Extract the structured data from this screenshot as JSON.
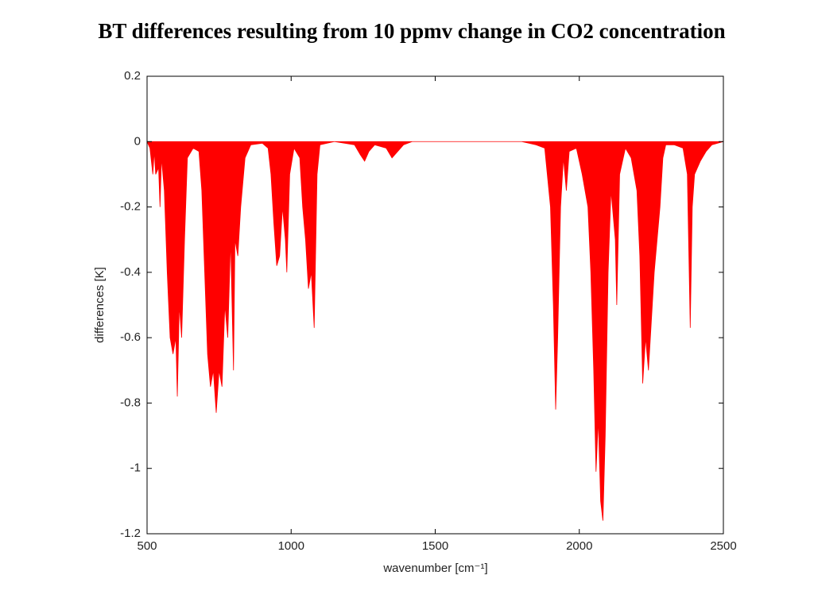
{
  "chart_data": {
    "type": "area",
    "title": "BT differences resulting from 10 ppmv change in CO2 concentration",
    "xlabel": "wavenumber [cm⁻¹]",
    "ylabel": "differences [K]",
    "color": "#ff0000",
    "xlim": [
      500,
      2500
    ],
    "xticks": [
      500,
      1000,
      1500,
      2000,
      2500
    ],
    "ylim": [
      -1.2,
      0.2
    ],
    "yticks": [
      0.2,
      0,
      -0.2,
      -0.4,
      -0.6,
      -0.8,
      -1,
      -1.2
    ],
    "x": [
      500,
      510,
      520,
      525,
      530,
      540,
      545,
      550,
      560,
      570,
      580,
      590,
      600,
      605,
      612,
      620,
      630,
      640,
      660,
      680,
      690,
      700,
      710,
      720,
      730,
      740,
      750,
      760,
      770,
      780,
      790,
      800,
      805,
      815,
      825,
      840,
      860,
      900,
      920,
      930,
      940,
      950,
      960,
      970,
      980,
      985,
      995,
      1010,
      1030,
      1040,
      1050,
      1060,
      1070,
      1080,
      1090,
      1100,
      1150,
      1220,
      1240,
      1255,
      1270,
      1290,
      1330,
      1350,
      1370,
      1390,
      1420,
      1800,
      1850,
      1880,
      1900,
      1910,
      1918,
      1925,
      1935,
      1945,
      1955,
      1965,
      1990,
      2010,
      2030,
      2040,
      2050,
      2058,
      2066,
      2074,
      2082,
      2090,
      2100,
      2110,
      2125,
      2130,
      2140,
      2160,
      2180,
      2200,
      2210,
      2220,
      2230,
      2240,
      2250,
      2260,
      2270,
      2280,
      2290,
      2300,
      2330,
      2360,
      2375,
      2385,
      2392,
      2400,
      2420,
      2440,
      2460,
      2500
    ],
    "values": [
      0,
      -0.02,
      -0.1,
      -0.03,
      -0.1,
      -0.08,
      -0.2,
      -0.05,
      -0.15,
      -0.4,
      -0.6,
      -0.65,
      -0.6,
      -0.78,
      -0.5,
      -0.6,
      -0.3,
      -0.05,
      -0.02,
      -0.03,
      -0.15,
      -0.4,
      -0.65,
      -0.75,
      -0.7,
      -0.83,
      -0.7,
      -0.75,
      -0.5,
      -0.6,
      -0.3,
      -0.7,
      -0.3,
      -0.35,
      -0.2,
      -0.05,
      -0.01,
      -0.005,
      -0.02,
      -0.1,
      -0.25,
      -0.38,
      -0.35,
      -0.2,
      -0.3,
      -0.4,
      -0.1,
      -0.02,
      -0.05,
      -0.2,
      -0.3,
      -0.45,
      -0.4,
      -0.57,
      -0.1,
      -0.01,
      0,
      -0.01,
      -0.04,
      -0.06,
      -0.03,
      -0.01,
      -0.02,
      -0.05,
      -0.03,
      -0.01,
      0,
      0,
      -0.01,
      -0.02,
      -0.2,
      -0.5,
      -0.82,
      -0.6,
      -0.2,
      -0.05,
      -0.15,
      -0.03,
      -0.02,
      -0.1,
      -0.2,
      -0.4,
      -0.7,
      -1.01,
      -0.85,
      -1.1,
      -1.16,
      -0.9,
      -0.4,
      -0.15,
      -0.3,
      -0.5,
      -0.1,
      -0.02,
      -0.05,
      -0.15,
      -0.35,
      -0.74,
      -0.6,
      -0.7,
      -0.55,
      -0.4,
      -0.3,
      -0.2,
      -0.05,
      -0.01,
      -0.01,
      -0.02,
      -0.1,
      -0.57,
      -0.2,
      -0.1,
      -0.06,
      -0.03,
      -0.01,
      0
    ]
  }
}
